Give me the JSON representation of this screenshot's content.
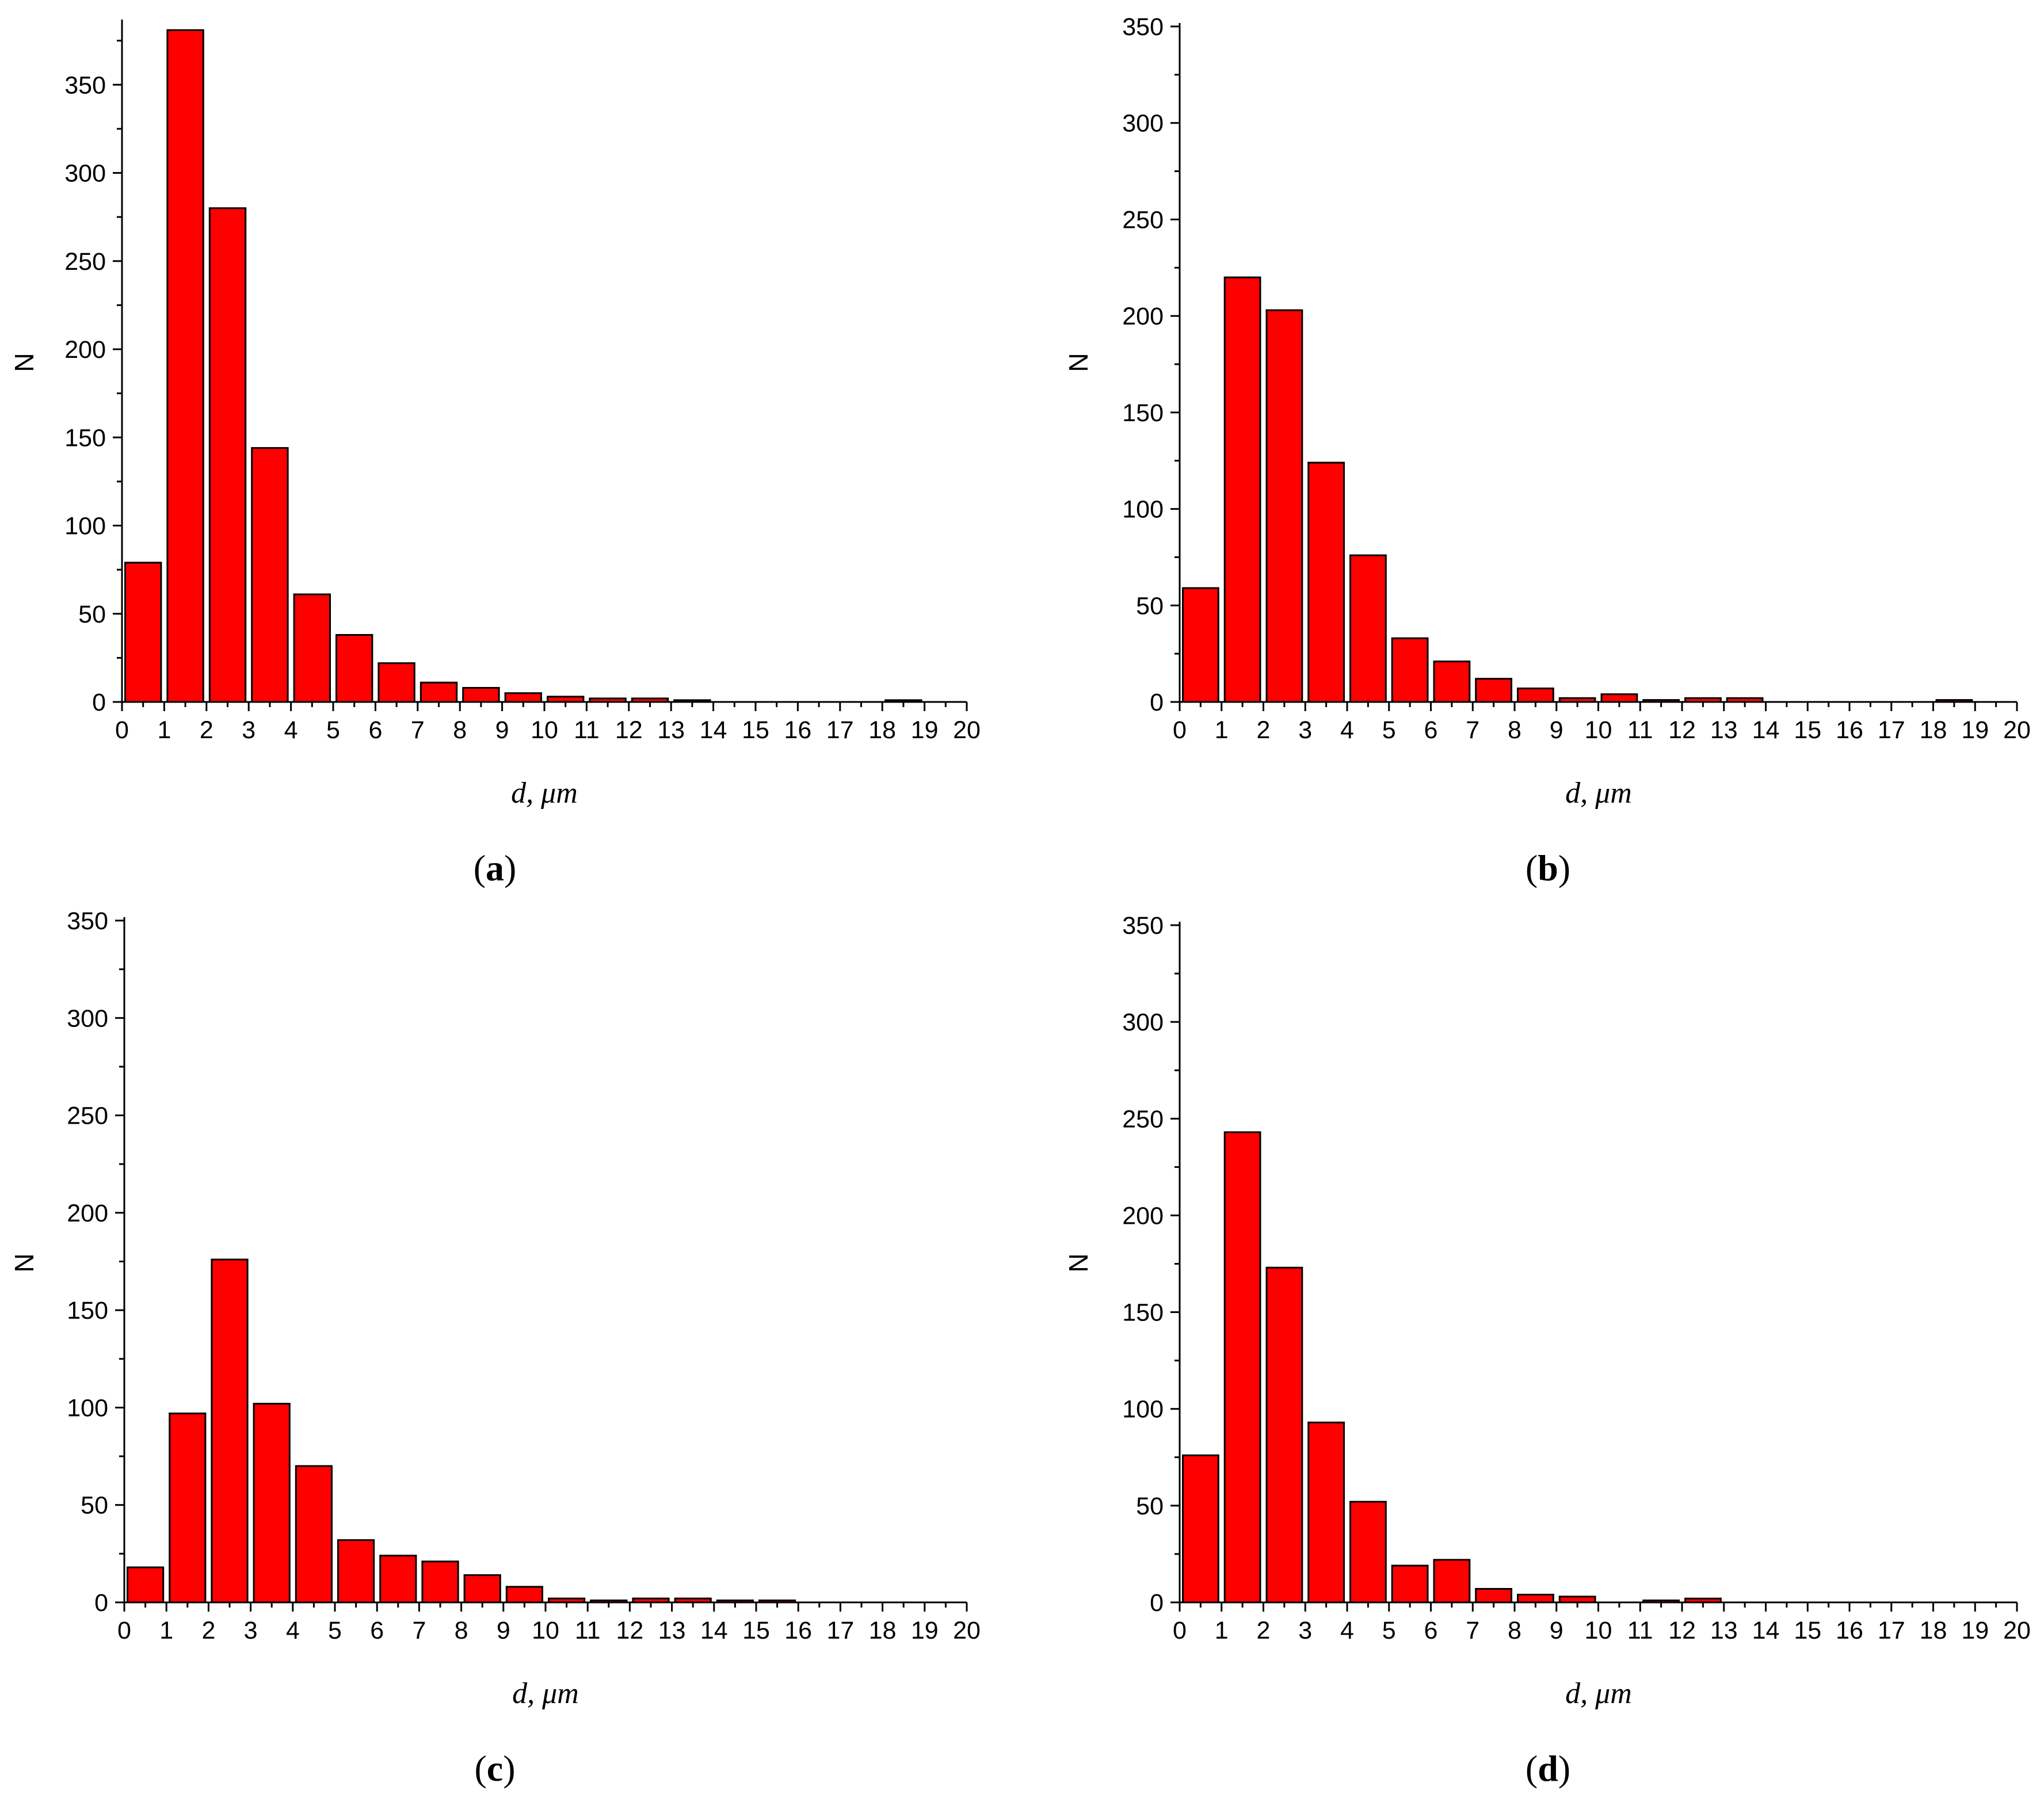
{
  "colors": {
    "bar_fill": "#ff0000",
    "bar_stroke": "#000000",
    "axis": "#000000",
    "background": "#ffffff"
  },
  "chart_data": [
    {
      "id": "a",
      "type": "bar",
      "panel_label": "a",
      "caption_open": "(",
      "caption_close": ")",
      "title": "",
      "xlabel": "d, μm",
      "ylabel": "N",
      "xlim": [
        0,
        20
      ],
      "ylim": [
        0,
        385
      ],
      "x_ticks": [
        "0",
        "1",
        "2",
        "3",
        "4",
        "5",
        "6",
        "7",
        "8",
        "9",
        "10",
        "11",
        "12",
        "13",
        "14",
        "15",
        "16",
        "17",
        "18",
        "19",
        "20"
      ],
      "y_ticks": [
        0,
        50,
        100,
        150,
        200,
        250,
        300,
        350
      ],
      "bin_width": 1,
      "bins": [
        0,
        1,
        2,
        3,
        4,
        5,
        6,
        7,
        8,
        9,
        10,
        11,
        12,
        13,
        14,
        15,
        16,
        17,
        18,
        19
      ],
      "values": [
        79,
        381,
        280,
        144,
        61,
        38,
        22,
        11,
        8,
        5,
        3,
        2,
        2,
        1,
        0,
        0,
        0,
        0,
        1,
        0
      ]
    },
    {
      "id": "b",
      "type": "bar",
      "panel_label": "b",
      "caption_open": "(",
      "caption_close": ")",
      "title": "",
      "xlabel": "d, μm",
      "ylabel": "N",
      "xlim": [
        0,
        20
      ],
      "ylim": [
        0,
        350
      ],
      "x_ticks": [
        "0",
        "1",
        "2",
        "3",
        "4",
        "5",
        "6",
        "7",
        "8",
        "9",
        "10",
        "11",
        "12",
        "13",
        "14",
        "15",
        "16",
        "17",
        "18",
        "19",
        "20"
      ],
      "y_ticks": [
        0,
        50,
        100,
        150,
        200,
        250,
        300,
        350
      ],
      "bin_width": 1,
      "bins": [
        0,
        1,
        2,
        3,
        4,
        5,
        6,
        7,
        8,
        9,
        10,
        11,
        12,
        13,
        14,
        15,
        16,
        17,
        18,
        19
      ],
      "values": [
        59,
        220,
        203,
        124,
        76,
        33,
        21,
        12,
        7,
        2,
        4,
        1,
        2,
        2,
        0,
        0,
        0,
        0,
        1,
        0
      ]
    },
    {
      "id": "c",
      "type": "bar",
      "panel_label": "c",
      "caption_open": "(",
      "caption_close": ")",
      "title": "",
      "xlabel": "d, μm",
      "ylabel": "N",
      "xlim": [
        0,
        20
      ],
      "ylim": [
        0,
        350
      ],
      "x_ticks": [
        "0",
        "1",
        "2",
        "3",
        "4",
        "5",
        "6",
        "7",
        "8",
        "9",
        "10",
        "11",
        "12",
        "13",
        "14",
        "15",
        "16",
        "17",
        "18",
        "19",
        "20"
      ],
      "y_ticks": [
        0,
        50,
        100,
        150,
        200,
        250,
        300,
        350
      ],
      "bin_width": 1,
      "bins": [
        0,
        1,
        2,
        3,
        4,
        5,
        6,
        7,
        8,
        9,
        10,
        11,
        12,
        13,
        14,
        15,
        16,
        17,
        18,
        19
      ],
      "values": [
        18,
        97,
        176,
        102,
        70,
        32,
        24,
        21,
        14,
        8,
        2,
        1,
        2,
        2,
        1,
        1,
        0,
        0,
        0,
        0
      ]
    },
    {
      "id": "d",
      "type": "bar",
      "panel_label": "d",
      "caption_open": "(",
      "caption_close": ")",
      "title": "",
      "xlabel": "d, μm",
      "ylabel": "N",
      "xlim": [
        0,
        20
      ],
      "ylim": [
        0,
        350
      ],
      "x_ticks": [
        "0",
        "1",
        "2",
        "3",
        "4",
        "5",
        "6",
        "7",
        "8",
        "9",
        "10",
        "11",
        "12",
        "13",
        "14",
        "15",
        "16",
        "17",
        "18",
        "19",
        "20"
      ],
      "y_ticks": [
        0,
        50,
        100,
        150,
        200,
        250,
        300,
        350
      ],
      "bin_width": 1,
      "bins": [
        0,
        1,
        2,
        3,
        4,
        5,
        6,
        7,
        8,
        9,
        10,
        11,
        12,
        13,
        14,
        15,
        16,
        17,
        18,
        19
      ],
      "values": [
        76,
        243,
        173,
        93,
        52,
        19,
        22,
        7,
        4,
        3,
        0,
        1,
        2,
        0,
        0,
        0,
        0,
        0,
        0,
        0
      ]
    }
  ]
}
